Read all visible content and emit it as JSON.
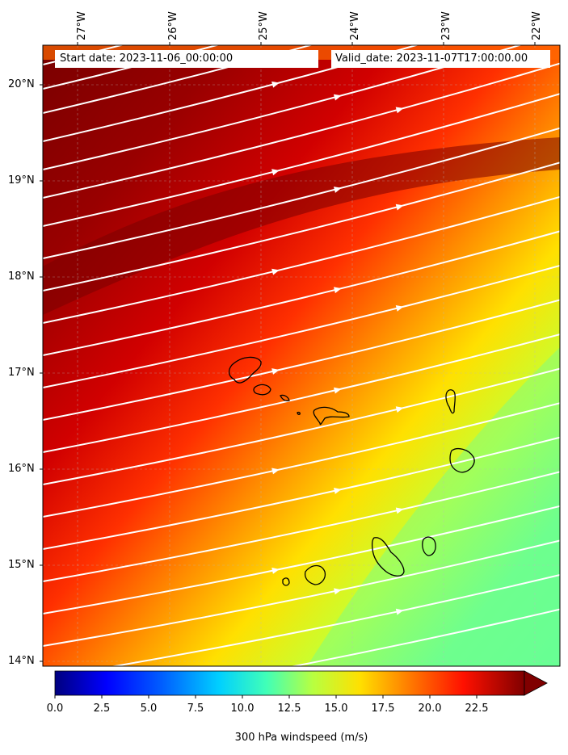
{
  "header": {
    "start_date": "Start date: 2023-11-06_00:00:00",
    "valid_date": "Valid_date: 2023-11-07T17:00:00.00"
  },
  "axes": {
    "longitude_labels": [
      "27°W",
      "26°W",
      "25°W",
      "24°W",
      "23°W",
      "22°W"
    ],
    "latitude_labels": [
      "20°N",
      "19°N",
      "18°N",
      "17°N",
      "16°N",
      "15°N",
      "14°N"
    ]
  },
  "colorbar": {
    "title": "300 hPa windspeed (m/s)",
    "tick_labels": [
      "0.0",
      "2.5",
      "5.0",
      "7.5",
      "10.0",
      "12.5",
      "15.0",
      "17.5",
      "20.0",
      "22.5"
    ],
    "min": 0,
    "max": 25,
    "extend": "max",
    "colormap": "jet"
  },
  "colors": {
    "coastline": "#000000",
    "streamlines": "#ffffff",
    "grid": "#bbbbbb"
  },
  "map": {
    "field": "300 hPa windspeed",
    "region_lon": [
      -27.4,
      -21.7
    ],
    "region_lat": [
      14.0,
      20.4
    ]
  }
}
